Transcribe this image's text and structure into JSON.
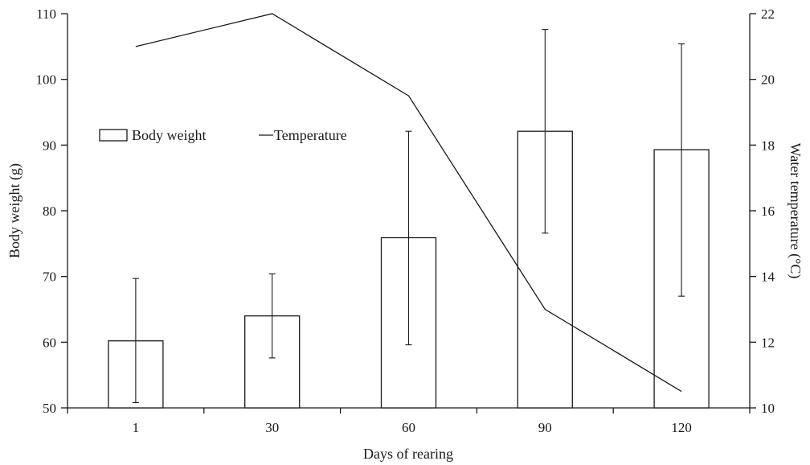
{
  "chart_data": {
    "type": "bar",
    "categories": [
      "1",
      "30",
      "60",
      "90",
      "120"
    ],
    "xlabel": "Days of rearing",
    "ylabel": "Body weight (g)",
    "y2label": "Water temperature (°C)",
    "ylim": [
      50,
      110
    ],
    "y2lim": [
      10,
      22
    ],
    "yticks": [
      50,
      60,
      70,
      80,
      90,
      100,
      110
    ],
    "y2ticks": [
      10,
      12,
      14,
      16,
      18,
      20,
      22
    ],
    "series": [
      {
        "name": "Body weight",
        "type": "bar",
        "axis": "left",
        "values": [
          60.2,
          64.0,
          75.9,
          92.1,
          89.3
        ],
        "error_low": [
          50.8,
          57.6,
          59.6,
          76.6,
          67.0
        ],
        "error_high": [
          69.7,
          70.4,
          92.1,
          107.6,
          105.4
        ]
      },
      {
        "name": "Temperature",
        "type": "line",
        "axis": "right",
        "values": [
          21.0,
          22.0,
          19.5,
          13.0,
          10.5
        ]
      }
    ],
    "legend": "top-left",
    "grid": false
  }
}
